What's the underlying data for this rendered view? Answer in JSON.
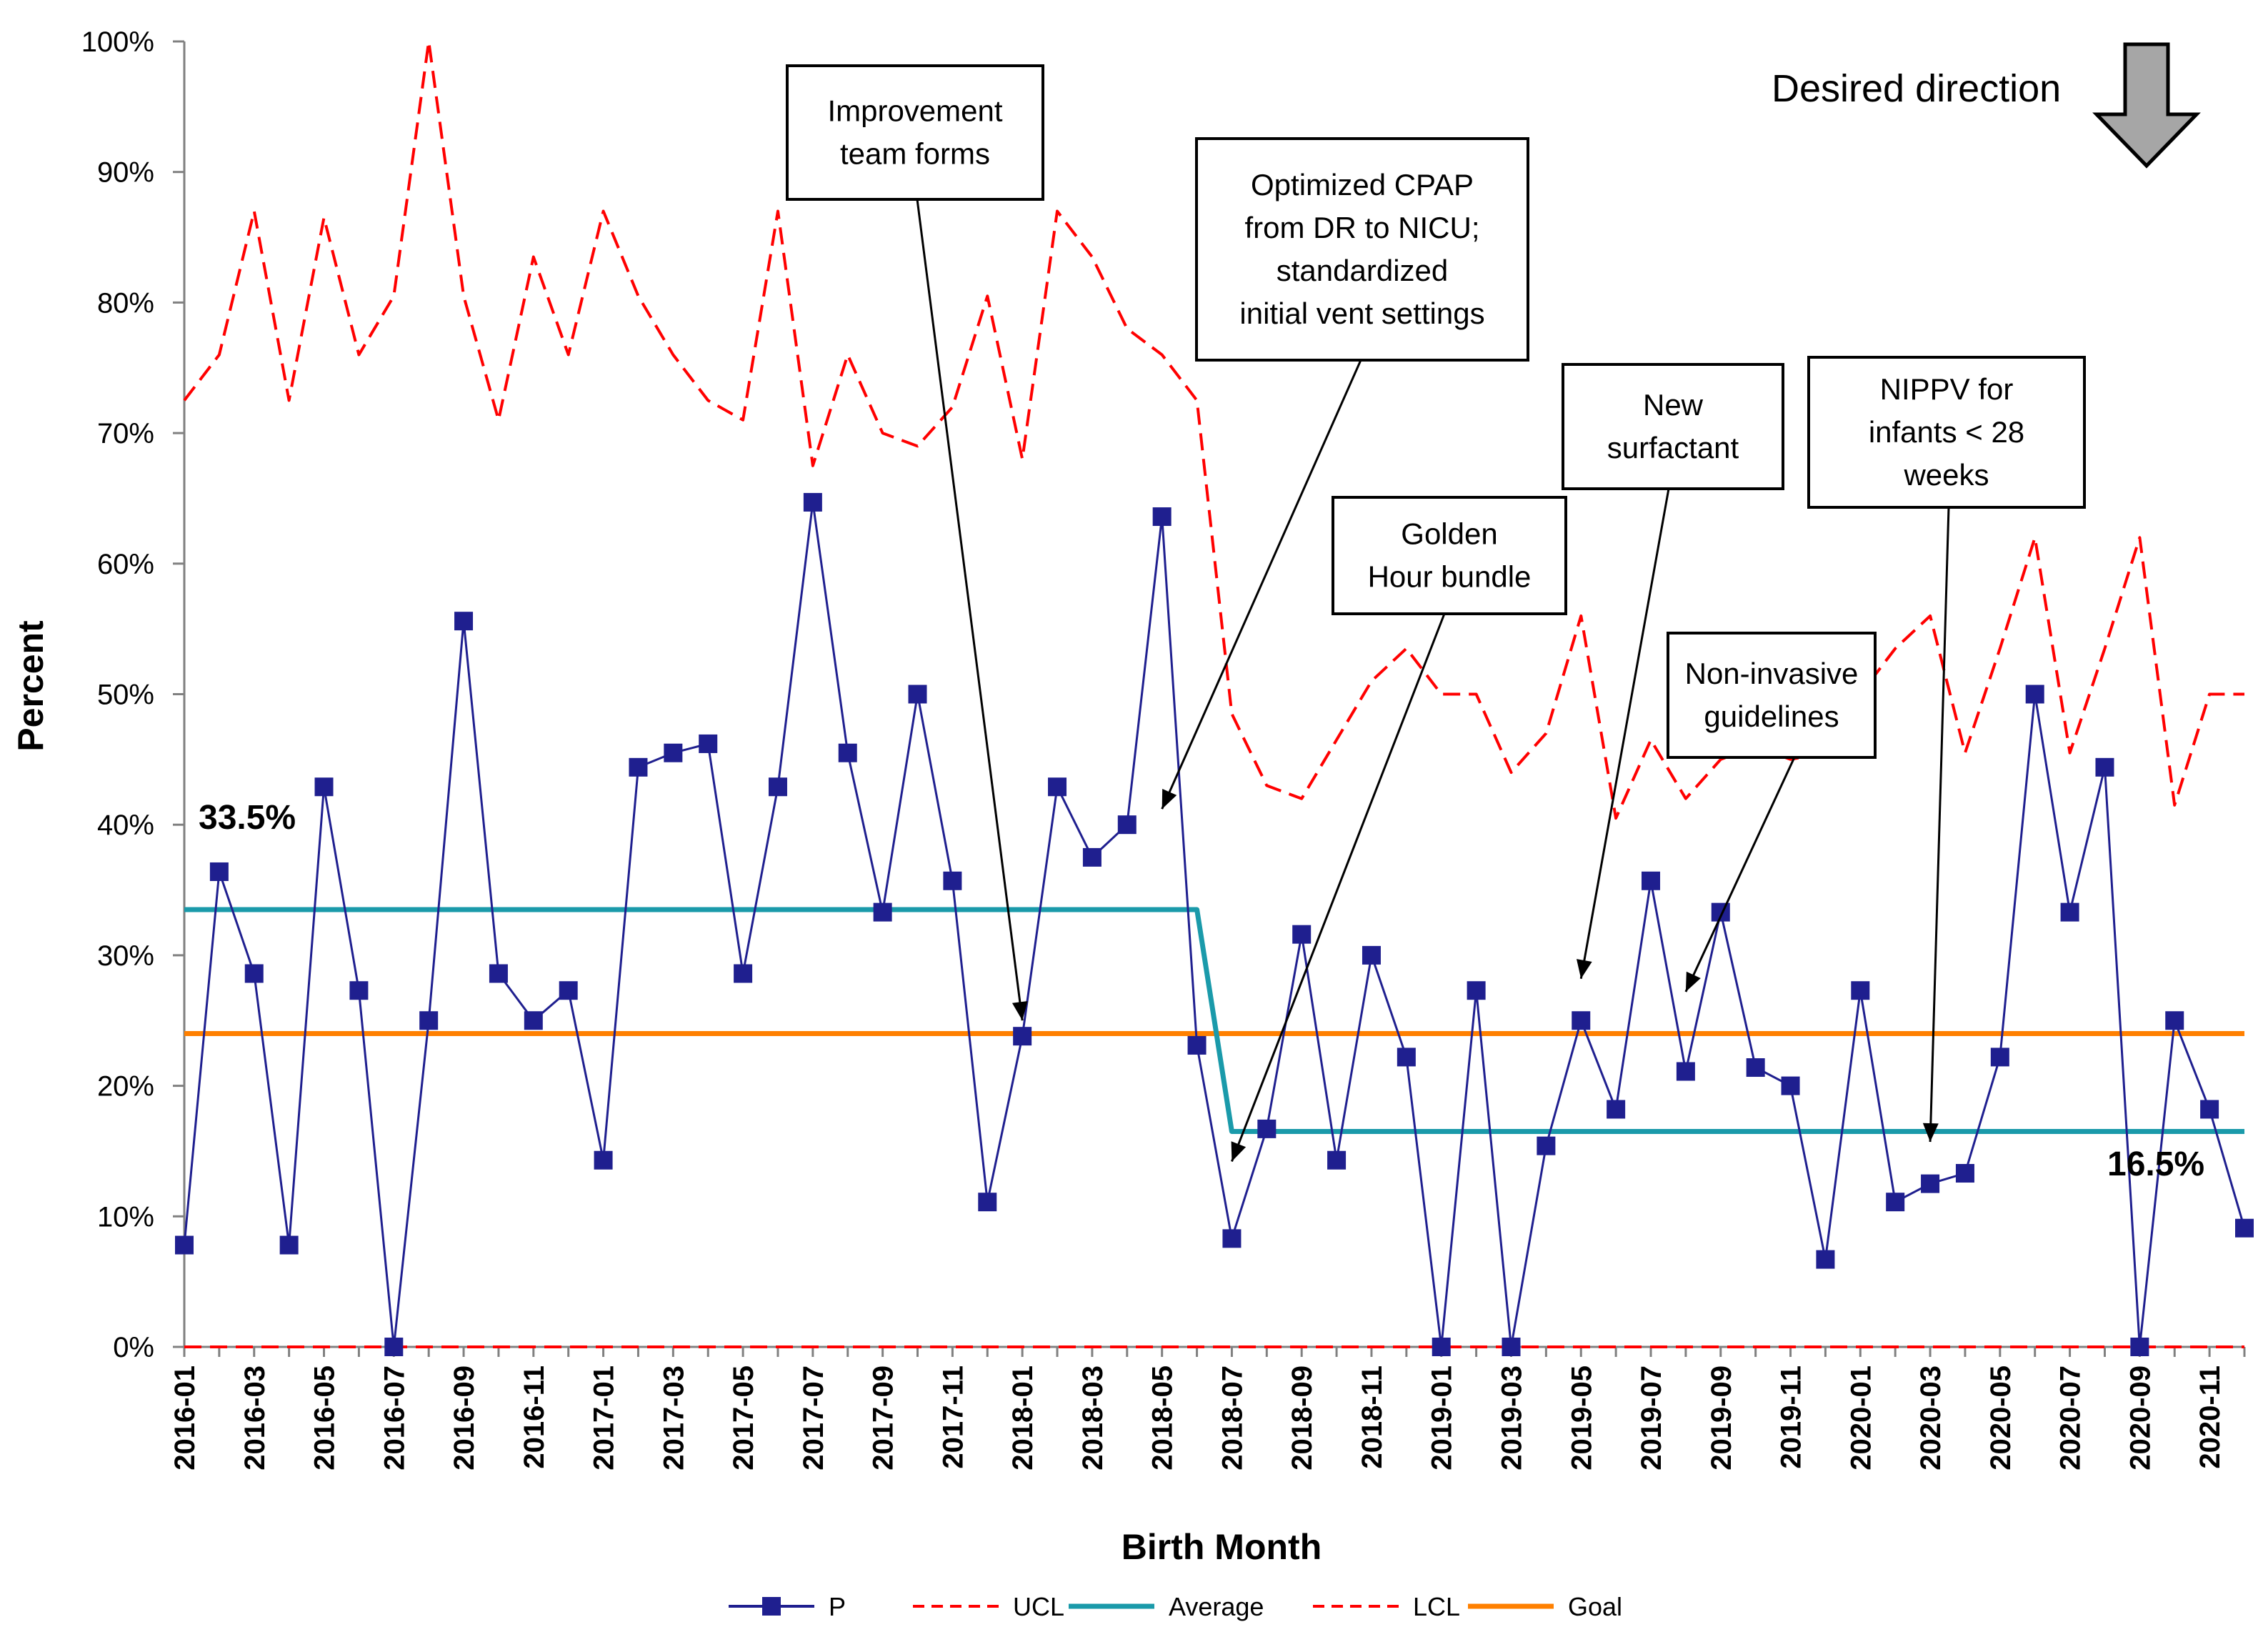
{
  "chart_data": {
    "type": "line",
    "title": "",
    "xlabel": "Birth Month",
    "ylabel": "Percent",
    "ylim": [
      0,
      100
    ],
    "yticks": [
      "0%",
      "10%",
      "20%",
      "30%",
      "40%",
      "50%",
      "60%",
      "70%",
      "80%",
      "90%",
      "100%"
    ],
    "x": [
      "2016-01",
      "2016-02",
      "2016-03",
      "2016-04",
      "2016-05",
      "2016-06",
      "2016-07",
      "2016-08",
      "2016-09",
      "2016-10",
      "2016-11",
      "2016-12",
      "2017-01",
      "2017-02",
      "2017-03",
      "2017-04",
      "2017-05",
      "2017-06",
      "2017-07",
      "2017-08",
      "2017-09",
      "2017-10",
      "2017-11",
      "2017-12",
      "2018-01",
      "2018-02",
      "2018-03",
      "2018-04",
      "2018-05",
      "2018-06",
      "2018-07",
      "2018-08",
      "2018-09",
      "2018-10",
      "2018-11",
      "2018-12",
      "2019-01",
      "2019-02",
      "2019-03",
      "2019-04",
      "2019-05",
      "2019-06",
      "2019-07",
      "2019-08",
      "2019-09",
      "2019-10",
      "2019-11",
      "2019-12",
      "2020-01",
      "2020-02",
      "2020-03",
      "2020-04",
      "2020-05",
      "2020-06",
      "2020-07",
      "2020-08",
      "2020-09",
      "2020-10",
      "2020-11",
      "2020-12"
    ],
    "xtick_labels": [
      "2016-01",
      "2016-03",
      "2016-05",
      "2016-07",
      "2016-09",
      "2016-11",
      "2017-01",
      "2017-03",
      "2017-05",
      "2017-07",
      "2017-09",
      "2017-11",
      "2018-01",
      "2018-03",
      "2018-05",
      "2018-07",
      "2018-09",
      "2018-11",
      "2019-01",
      "2019-03",
      "2019-05",
      "2019-07",
      "2019-09",
      "2019-11",
      "2020-01",
      "2020-03",
      "2020-05",
      "2020-07",
      "2020-09",
      "2020-11"
    ],
    "series": [
      {
        "name": "P",
        "color": "#1f1f8f",
        "marker": "square",
        "values": [
          7.8,
          36.4,
          28.6,
          7.8,
          42.9,
          27.3,
          0,
          25,
          55.6,
          28.6,
          25,
          27.3,
          14.3,
          44.4,
          45.5,
          46.2,
          28.6,
          42.9,
          64.7,
          45.5,
          33.3,
          50,
          35.7,
          11.1,
          23.8,
          42.9,
          37.5,
          40,
          63.6,
          23.1,
          8.3,
          16.7,
          31.6,
          14.3,
          30,
          22.2,
          0,
          27.3,
          0,
          15.4,
          25,
          18.2,
          35.7,
          21.1,
          33.3,
          21.4,
          20,
          6.7,
          27.3,
          11.1,
          12.5,
          13.3,
          22.2,
          50,
          33.3,
          44.4,
          0,
          25,
          18.2,
          9.1
        ]
      },
      {
        "name": "UCL",
        "color": "#ff0000",
        "dash": true,
        "values": [
          72.5,
          76,
          87,
          72.5,
          86.5,
          76,
          80.5,
          100,
          80.5,
          71,
          83.5,
          76,
          87,
          80.5,
          76,
          72.5,
          71,
          87,
          67.5,
          76,
          70,
          69,
          72,
          80.5,
          68,
          87,
          83.5,
          78,
          76,
          72.5,
          48.5,
          43,
          42,
          46.5,
          51,
          53.5,
          50,
          50,
          44,
          47,
          56,
          40.5,
          46.5,
          42,
          45,
          46,
          45,
          45.5,
          50,
          53.5,
          56,
          45.5,
          53.5,
          62,
          45.5,
          53.5,
          62,
          41.5,
          50,
          50
        ]
      },
      {
        "name": "Average",
        "color": "#1a9aaa",
        "values": [
          33.5,
          33.5,
          33.5,
          33.5,
          33.5,
          33.5,
          33.5,
          33.5,
          33.5,
          33.5,
          33.5,
          33.5,
          33.5,
          33.5,
          33.5,
          33.5,
          33.5,
          33.5,
          33.5,
          33.5,
          33.5,
          33.5,
          33.5,
          33.5,
          33.5,
          33.5,
          33.5,
          33.5,
          33.5,
          33.5,
          16.5,
          16.5,
          16.5,
          16.5,
          16.5,
          16.5,
          16.5,
          16.5,
          16.5,
          16.5,
          16.5,
          16.5,
          16.5,
          16.5,
          16.5,
          16.5,
          16.5,
          16.5,
          16.5,
          16.5,
          16.5,
          16.5,
          16.5,
          16.5,
          16.5,
          16.5,
          16.5,
          16.5,
          16.5,
          16.5
        ]
      },
      {
        "name": "LCL",
        "color": "#ff0000",
        "dash": true,
        "values": [
          0,
          0,
          0,
          0,
          0,
          0,
          0,
          0,
          0,
          0,
          0,
          0,
          0,
          0,
          0,
          0,
          0,
          0,
          0,
          0,
          0,
          0,
          0,
          0,
          0,
          0,
          0,
          0,
          0,
          0,
          0,
          0,
          0,
          0,
          0,
          0,
          0,
          0,
          0,
          0,
          0,
          0,
          0,
          0,
          0,
          0,
          0,
          0,
          0,
          0,
          0,
          0,
          0,
          0,
          0,
          0,
          0,
          0,
          0,
          0
        ]
      },
      {
        "name": "Goal",
        "color": "#ff8000",
        "values": [
          24,
          24,
          24,
          24,
          24,
          24,
          24,
          24,
          24,
          24,
          24,
          24,
          24,
          24,
          24,
          24,
          24,
          24,
          24,
          24,
          24,
          24,
          24,
          24,
          24,
          24,
          24,
          24,
          24,
          24,
          24,
          24,
          24,
          24,
          24,
          24,
          24,
          24,
          24,
          24,
          24,
          24,
          24,
          24,
          24,
          24,
          24,
          24,
          24,
          24,
          24,
          24,
          24,
          24,
          24,
          24,
          24,
          24,
          24,
          24
        ]
      }
    ],
    "labels": {
      "start_average": "33.5%",
      "end_average": "16.5%"
    },
    "desired_direction": "Desired direction",
    "annotations": [
      {
        "lines": [
          "Improvement",
          "team forms"
        ],
        "x": "2017-12"
      },
      {
        "lines": [
          "Optimized CPAP",
          "from DR to NICU;",
          "standardized",
          "initial vent settings"
        ],
        "x": "2018-04"
      },
      {
        "lines": [
          "Golden",
          "Hour bundle"
        ],
        "x": "2018-07"
      },
      {
        "lines": [
          "New",
          "surfactant"
        ],
        "x": "2019-04"
      },
      {
        "lines": [
          "Non-invasive",
          "guidelines"
        ],
        "x": "2019-07"
      },
      {
        "lines": [
          "NIPPV for",
          "infants < 28",
          "weeks"
        ],
        "x": "2020-02"
      }
    ],
    "legend": [
      "P",
      "UCL",
      "Average",
      "LCL",
      "Goal"
    ],
    "legend_position": "bottom",
    "grid": false
  }
}
